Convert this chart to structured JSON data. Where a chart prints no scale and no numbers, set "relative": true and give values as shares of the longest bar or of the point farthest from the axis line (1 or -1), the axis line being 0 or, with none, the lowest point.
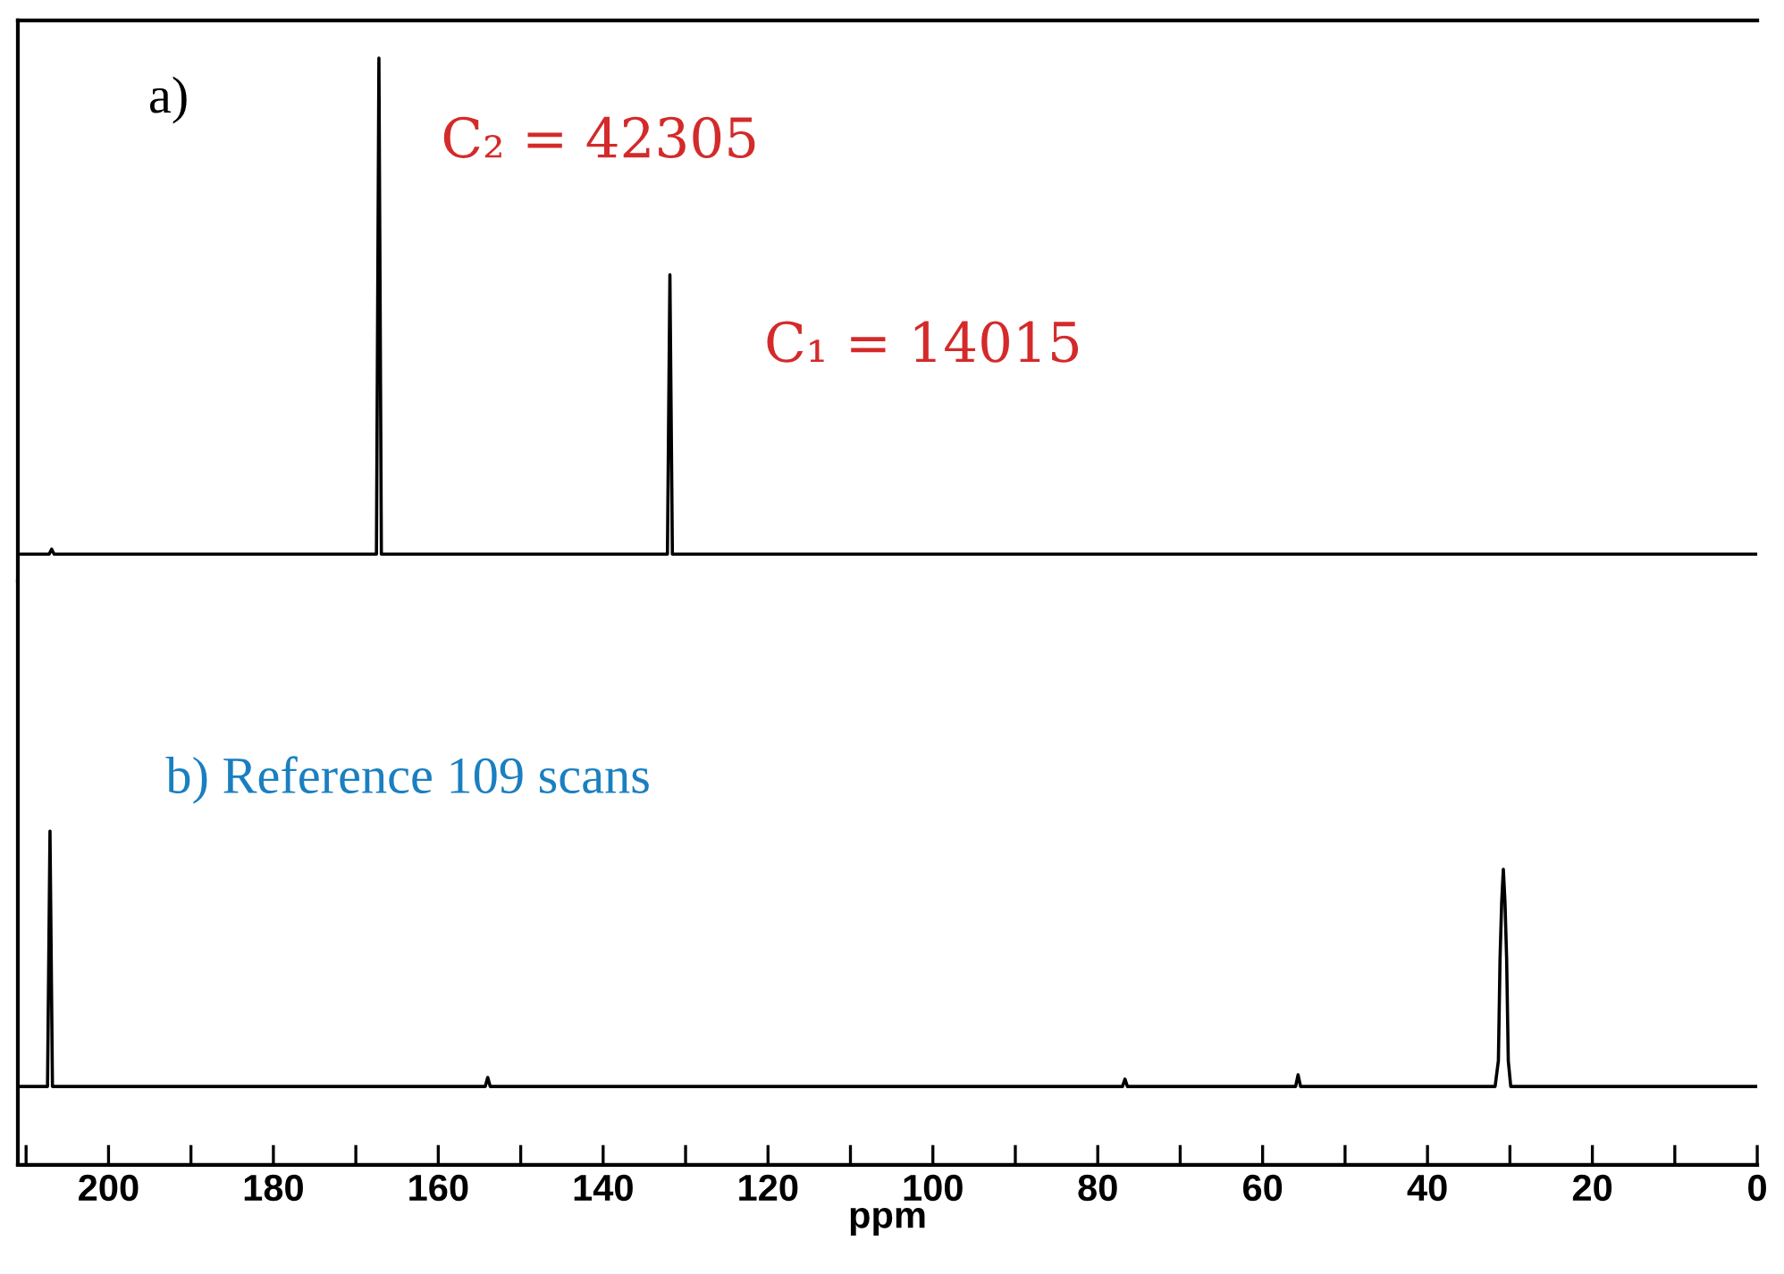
{
  "chart_data": [
    {
      "type": "line",
      "title": "a)",
      "relative": true,
      "xlim": [
        211,
        0
      ],
      "tick_labels": false,
      "series": [
        {
          "color": "#000000",
          "x": [
            211,
            207.2,
            206.9,
            206.6,
            167.5,
            167.2,
            166.9,
            132.2,
            131.9,
            131.6,
            0
          ],
          "values": [
            0,
            0,
            0.01,
            0,
            0,
            1,
            0,
            0,
            0.563,
            0,
            0
          ]
        }
      ],
      "annotations": [
        {
          "text": "C₂ = 42305",
          "x": 167.2,
          "y": 1
        },
        {
          "text": "C₁ = 14015",
          "x": 131.9,
          "y": 0.563
        }
      ]
    },
    {
      "type": "line",
      "title": "b) Reference 109 scans",
      "relative": true,
      "xlim": [
        211,
        0
      ],
      "xlabel": "ppm",
      "tick_labels": "x",
      "xticks": [
        {
          "value": 210,
          "label": null
        },
        200,
        {
          "value": 190,
          "label": null
        },
        180,
        {
          "value": 170,
          "label": null
        },
        160,
        {
          "value": 150,
          "label": null
        },
        140,
        {
          "value": 130,
          "label": null
        },
        120,
        {
          "value": 110,
          "label": null
        },
        100,
        {
          "value": 90,
          "label": null
        },
        80,
        {
          "value": 70,
          "label": null
        },
        60,
        {
          "value": 50,
          "label": null
        },
        40,
        {
          "value": 30,
          "label": null
        },
        20,
        {
          "value": 10,
          "label": null
        },
        0
      ],
      "series": [
        {
          "color": "#000000",
          "x": [
            211,
            207.4,
            207.1,
            206.8,
            154.3,
            154.0,
            153.7,
            77.0,
            76.7,
            76.4,
            56.0,
            55.7,
            55.4,
            31.8,
            31.4,
            31.2,
            31.0,
            30.8,
            30.6,
            30.4,
            30.2,
            29.9,
            0
          ],
          "values": [
            0.235,
            0.235,
            1,
            0.235,
            0.235,
            0.262,
            0.235,
            0.235,
            0.257,
            0.235,
            0.235,
            0.27,
            0.235,
            0.235,
            0.312,
            0.618,
            0.786,
            0.885,
            0.786,
            0.618,
            0.312,
            0.235,
            0.235
          ]
        }
      ]
    }
  ]
}
